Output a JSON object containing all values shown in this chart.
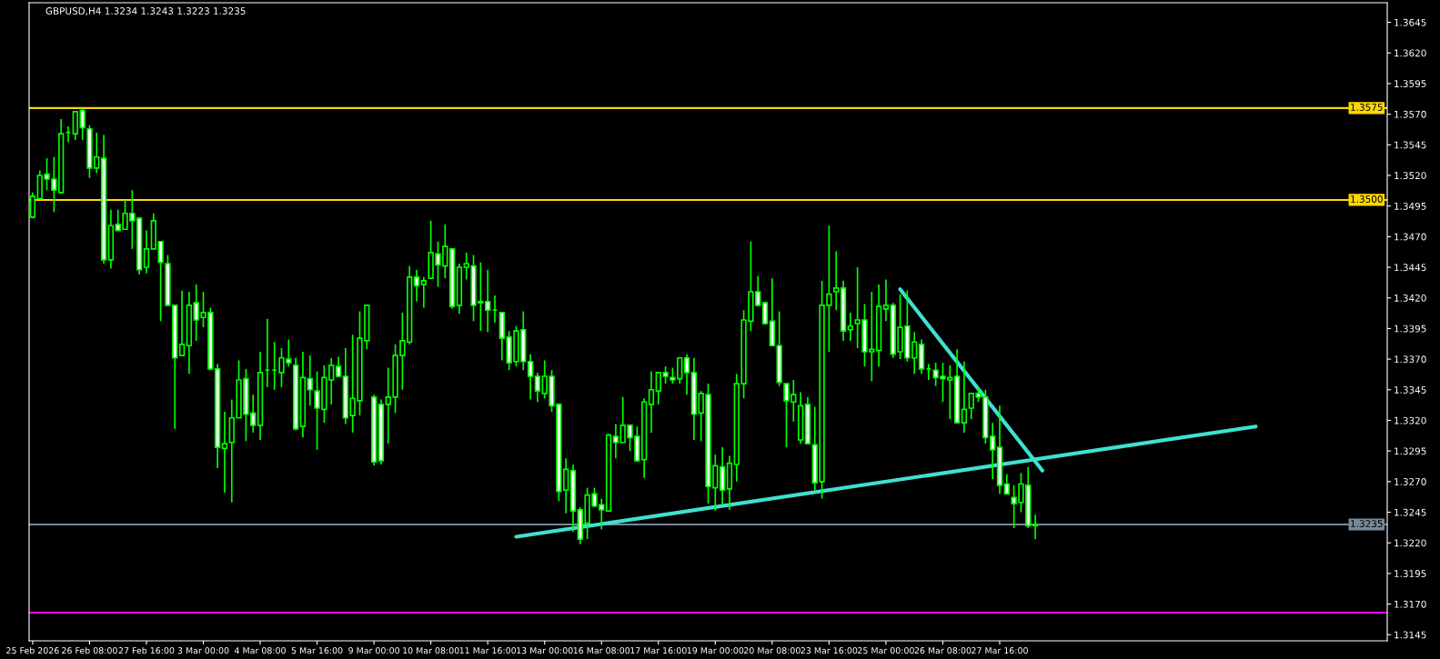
{
  "chart_data": {
    "type": "candlestick",
    "title": "GBPUSD,H4 1.3234 1.3243 1.3223 1.3235",
    "color": "#00ff00",
    "categories": [
      "25 Feb 2026",
      null,
      null,
      null,
      null,
      null,
      null,
      null,
      "26 Feb 08:00",
      null,
      null,
      null,
      null,
      null,
      null,
      null,
      "27 Feb 16:00",
      null,
      null,
      null,
      null,
      null,
      null,
      null,
      "3 Mar 00:00",
      null,
      null,
      null,
      null,
      null,
      null,
      null,
      "4 Mar 08:00",
      null,
      null,
      null,
      null,
      null,
      null,
      null,
      "5 Mar 16:00",
      null,
      null,
      null,
      null,
      null,
      null,
      null,
      "9 Mar 00:00",
      null,
      null,
      null,
      null,
      null,
      null,
      null,
      "10 Mar 08:00",
      null,
      null,
      null,
      null,
      null,
      null,
      null,
      "11 Mar 16:00",
      null,
      null,
      null,
      null,
      null,
      null,
      null,
      "13 Mar 00:00",
      null,
      null,
      null,
      null,
      null,
      null,
      null,
      "16 Mar 08:00",
      null,
      null,
      null,
      null,
      null,
      null,
      null,
      "17 Mar 16:00",
      null,
      null,
      null,
      null,
      null,
      null,
      null,
      "19 Mar 00:00",
      null,
      null,
      null,
      null,
      null,
      null,
      null,
      "20 Mar 08:00",
      null,
      null,
      null,
      null,
      null,
      null,
      null,
      "23 Mar 16:00",
      null,
      null,
      null,
      null,
      null,
      null,
      null,
      "25 Mar 00:00",
      null,
      null,
      null,
      null,
      null,
      null,
      null,
      "26 Mar 08:00",
      null,
      null,
      null,
      null,
      null,
      null,
      null,
      "27 Mar 16:00",
      null,
      null,
      null,
      null,
      null,
      null,
      null,
      null,
      null,
      null,
      null,
      null,
      null,
      null,
      null,
      null,
      null,
      null,
      null,
      null,
      null,
      null,
      null,
      null,
      null,
      null,
      null,
      null,
      null,
      null,
      null,
      null,
      null,
      null,
      null,
      null,
      null,
      null,
      null,
      null,
      null,
      null,
      null,
      null,
      null,
      null,
      null,
      null,
      null,
      null,
      null,
      null,
      null,
      null
    ],
    "ohlc": [
      [
        1.3486,
        1.3506,
        1.3485,
        1.3503
      ],
      [
        1.3501,
        1.3524,
        1.3501,
        1.352
      ],
      [
        1.3521,
        1.3534,
        1.3508,
        1.3517
      ],
      [
        1.3517,
        1.3535,
        1.349,
        1.3508
      ],
      [
        1.3506,
        1.3566,
        1.3505,
        1.3554
      ],
      [
        1.3555,
        1.356,
        1.3547,
        1.3555
      ],
      [
        1.3554,
        1.3572,
        1.3549,
        1.3572
      ],
      [
        1.3573,
        1.3575,
        1.3549,
        1.3559
      ],
      [
        1.3558,
        1.3561,
        1.3518,
        1.3526
      ],
      [
        1.3526,
        1.3555,
        1.3522,
        1.3535
      ],
      [
        1.3534,
        1.3553,
        1.3448,
        1.3451
      ],
      [
        1.3451,
        1.3492,
        1.3444,
        1.3479
      ],
      [
        1.348,
        1.3492,
        1.3475,
        1.3475
      ],
      [
        1.3476,
        1.35,
        1.3476,
        1.3489
      ],
      [
        1.3489,
        1.3508,
        1.346,
        1.3483
      ],
      [
        1.3485,
        1.3486,
        1.3439,
        1.3443
      ],
      [
        1.3445,
        1.3475,
        1.344,
        1.346
      ],
      [
        1.346,
        1.3489,
        1.346,
        1.3483
      ],
      [
        1.3466,
        1.3466,
        1.3401,
        1.3449
      ],
      [
        1.3448,
        1.3455,
        1.3414,
        1.3414
      ],
      [
        1.3414,
        1.3414,
        1.3313,
        1.3371
      ],
      [
        1.3373,
        1.3426,
        1.3373,
        1.3382
      ],
      [
        1.3381,
        1.3425,
        1.3358,
        1.3414
      ],
      [
        1.3416,
        1.3431,
        1.3385,
        1.3402
      ],
      [
        1.3404,
        1.3425,
        1.3396,
        1.3408
      ],
      [
        1.3408,
        1.3412,
        1.3361,
        1.3362
      ],
      [
        1.3362,
        1.3366,
        1.3281,
        1.3298
      ],
      [
        1.3297,
        1.3327,
        1.3261,
        1.3301
      ],
      [
        1.3302,
        1.3337,
        1.3253,
        1.3322
      ],
      [
        1.3322,
        1.3369,
        1.3322,
        1.3353
      ],
      [
        1.3354,
        1.3362,
        1.3303,
        1.3325
      ],
      [
        1.3326,
        1.3341,
        1.331,
        1.3316
      ],
      [
        1.3316,
        1.3376,
        1.3304,
        1.3359
      ],
      [
        1.3361,
        1.3403,
        1.3347,
        1.3361
      ],
      [
        1.3361,
        1.3384,
        1.3345,
        1.3361
      ],
      [
        1.3359,
        1.3379,
        1.3347,
        1.3371
      ],
      [
        1.337,
        1.3386,
        1.3364,
        1.3367
      ],
      [
        1.3365,
        1.3371,
        1.3312,
        1.3313
      ],
      [
        1.3315,
        1.3376,
        1.3306,
        1.3355
      ],
      [
        1.3354,
        1.3373,
        1.3332,
        1.3345
      ],
      [
        1.3344,
        1.336,
        1.3296,
        1.333
      ],
      [
        1.3329,
        1.3365,
        1.3318,
        1.3355
      ],
      [
        1.3353,
        1.3371,
        1.3333,
        1.3365
      ],
      [
        1.3364,
        1.3372,
        1.3355,
        1.3356
      ],
      [
        1.3356,
        1.3379,
        1.3317,
        1.3322
      ],
      [
        1.3324,
        1.339,
        1.331,
        1.3338
      ],
      [
        1.3336,
        1.3409,
        1.3324,
        1.3387
      ],
      [
        1.3385,
        1.3414,
        1.3378,
        1.3414
      ],
      [
        1.3339,
        1.3341,
        1.3283,
        1.3286
      ],
      [
        1.3333,
        1.3337,
        1.3284,
        1.3287
      ],
      [
        1.3333,
        1.3363,
        1.3301,
        1.3339
      ],
      [
        1.3339,
        1.3382,
        1.3326,
        1.3373
      ],
      [
        1.3373,
        1.3408,
        1.3345,
        1.3385
      ],
      [
        1.3384,
        1.3446,
        1.3382,
        1.3437
      ],
      [
        1.3437,
        1.3443,
        1.3417,
        1.343
      ],
      [
        1.3431,
        1.3437,
        1.3412,
        1.3434
      ],
      [
        1.3436,
        1.3483,
        1.3436,
        1.3457
      ],
      [
        1.3456,
        1.3466,
        1.3429,
        1.3447
      ],
      [
        1.3446,
        1.348,
        1.3436,
        1.3462
      ],
      [
        1.346,
        1.346,
        1.3411,
        1.3413
      ],
      [
        1.3414,
        1.3448,
        1.3407,
        1.3445
      ],
      [
        1.3445,
        1.3457,
        1.3435,
        1.3448
      ],
      [
        1.3446,
        1.3455,
        1.3401,
        1.3414
      ],
      [
        1.3416,
        1.3449,
        1.3393,
        1.3417
      ],
      [
        1.3417,
        1.3443,
        1.3392,
        1.341
      ],
      [
        1.341,
        1.3422,
        1.34,
        1.341
      ],
      [
        1.3408,
        1.3408,
        1.3369,
        1.3387
      ],
      [
        1.3388,
        1.3393,
        1.3361,
        1.3367
      ],
      [
        1.3368,
        1.3397,
        1.3364,
        1.3393
      ],
      [
        1.3394,
        1.3409,
        1.3361,
        1.3368
      ],
      [
        1.3368,
        1.3374,
        1.3337,
        1.3356
      ],
      [
        1.3356,
        1.3359,
        1.3335,
        1.3344
      ],
      [
        1.3342,
        1.3369,
        1.3338,
        1.3356
      ],
      [
        1.3356,
        1.3361,
        1.3327,
        1.3332
      ],
      [
        1.3333,
        1.3334,
        1.3254,
        1.3262
      ],
      [
        1.3263,
        1.3289,
        1.3244,
        1.328
      ],
      [
        1.3279,
        1.3284,
        1.3229,
        1.3246
      ],
      [
        1.3247,
        1.3249,
        1.3219,
        1.3223
      ],
      [
        1.3236,
        1.3265,
        1.3223,
        1.3259
      ],
      [
        1.326,
        1.3265,
        1.3249,
        1.325
      ],
      [
        1.3251,
        1.3256,
        1.3231,
        1.3247
      ],
      [
        1.3246,
        1.3309,
        1.3246,
        1.3308
      ],
      [
        1.3307,
        1.3317,
        1.3289,
        1.3302
      ],
      [
        1.3302,
        1.3339,
        1.3302,
        1.3316
      ],
      [
        1.3316,
        1.3316,
        1.3295,
        1.3306
      ],
      [
        1.3307,
        1.3315,
        1.3286,
        1.3287
      ],
      [
        1.3288,
        1.3338,
        1.3273,
        1.3335
      ],
      [
        1.3333,
        1.336,
        1.331,
        1.3345
      ],
      [
        1.3344,
        1.3359,
        1.3333,
        1.3359
      ],
      [
        1.3359,
        1.3364,
        1.335,
        1.3356
      ],
      [
        1.3355,
        1.3363,
        1.335,
        1.3353
      ],
      [
        1.3354,
        1.3371,
        1.335,
        1.3371
      ],
      [
        1.3371,
        1.3374,
        1.3341,
        1.3359
      ],
      [
        1.3359,
        1.3371,
        1.3304,
        1.3325
      ],
      [
        1.3326,
        1.3344,
        1.3303,
        1.3342
      ],
      [
        1.3341,
        1.335,
        1.3252,
        1.3266
      ],
      [
        1.3265,
        1.3292,
        1.3246,
        1.3283
      ],
      [
        1.3282,
        1.3298,
        1.3251,
        1.3263
      ],
      [
        1.3264,
        1.3291,
        1.3247,
        1.3285
      ],
      [
        1.3284,
        1.3358,
        1.327,
        1.335
      ],
      [
        1.335,
        1.341,
        1.3338,
        1.3402
      ],
      [
        1.3401,
        1.3466,
        1.3393,
        1.3425
      ],
      [
        1.3425,
        1.3438,
        1.3413,
        1.3414
      ],
      [
        1.3416,
        1.3417,
        1.3398,
        1.3399
      ],
      [
        1.3401,
        1.3436,
        1.3381,
        1.3381
      ],
      [
        1.3381,
        1.3409,
        1.3348,
        1.3351
      ],
      [
        1.335,
        1.335,
        1.3298,
        1.3336
      ],
      [
        1.3335,
        1.3353,
        1.3319,
        1.3341
      ],
      [
        1.3304,
        1.3343,
        1.3301,
        1.3332
      ],
      [
        1.3333,
        1.3339,
        1.3301,
        1.3301
      ],
      [
        1.33,
        1.3331,
        1.3263,
        1.3269
      ],
      [
        1.327,
        1.3434,
        1.3256,
        1.3414
      ],
      [
        1.3414,
        1.3479,
        1.3376,
        1.3423
      ],
      [
        1.3425,
        1.3458,
        1.341,
        1.3428
      ],
      [
        1.3428,
        1.3434,
        1.3385,
        1.3393
      ],
      [
        1.3394,
        1.3408,
        1.3385,
        1.3397
      ],
      [
        1.3399,
        1.3445,
        1.3379,
        1.3402
      ],
      [
        1.3402,
        1.3415,
        1.3364,
        1.3376
      ],
      [
        1.3376,
        1.3425,
        1.3352,
        1.3378
      ],
      [
        1.3377,
        1.3431,
        1.3364,
        1.3413
      ],
      [
        1.3411,
        1.3435,
        1.3401,
        1.3414
      ],
      [
        1.3414,
        1.3416,
        1.3371,
        1.3374
      ],
      [
        1.3376,
        1.3423,
        1.337,
        1.3396
      ],
      [
        1.3397,
        1.3426,
        1.3368,
        1.3371
      ],
      [
        1.3371,
        1.3392,
        1.3358,
        1.3384
      ],
      [
        1.3382,
        1.3386,
        1.3358,
        1.3362
      ],
      [
        1.3362,
        1.3366,
        1.3353,
        1.3362
      ],
      [
        1.3361,
        1.3367,
        1.3348,
        1.3355
      ],
      [
        1.3356,
        1.3367,
        1.3335,
        1.3354
      ],
      [
        1.3353,
        1.3365,
        1.3321,
        1.3355
      ],
      [
        1.3356,
        1.3378,
        1.3318,
        1.3318
      ],
      [
        1.3318,
        1.3368,
        1.331,
        1.3329
      ],
      [
        1.333,
        1.3342,
        1.3321,
        1.3342
      ],
      [
        1.3342,
        1.3347,
        1.3335,
        1.3339
      ],
      [
        1.3339,
        1.3345,
        1.3301,
        1.3306
      ],
      [
        1.3307,
        1.3318,
        1.3272,
        1.3296
      ],
      [
        1.3298,
        1.3332,
        1.326,
        1.3267
      ],
      [
        1.3268,
        1.3276,
        1.326,
        1.326
      ],
      [
        1.3257,
        1.3267,
        1.3232,
        1.3252
      ],
      [
        1.3253,
        1.3277,
        1.3245,
        1.3268
      ],
      [
        1.3267,
        1.3282,
        1.3232,
        1.3234
      ],
      [
        1.3234,
        1.3243,
        1.3223,
        1.3235
      ],
      null,
      null,
      null,
      null,
      null,
      null,
      null,
      null,
      null,
      null,
      null,
      null,
      null,
      null,
      null,
      null,
      null,
      null,
      null,
      null,
      null,
      null,
      null,
      null,
      null,
      null,
      null,
      null,
      null,
      null,
      null,
      null,
      null,
      null,
      null,
      null,
      null,
      null,
      null,
      null,
      null,
      null,
      null,
      null,
      null,
      null,
      null,
      null,
      null
    ],
    "series": [
      {
        "type": "line",
        "color": "#40e0d0",
        "values": [
          null,
          null,
          null,
          null,
          null,
          null,
          null,
          null,
          null,
          null,
          null,
          null,
          null,
          null,
          null,
          null,
          null,
          null,
          null,
          null,
          null,
          null,
          null,
          null,
          null,
          null,
          null,
          null,
          null,
          null,
          null,
          null,
          null,
          null,
          null,
          null,
          null,
          null,
          null,
          null,
          null,
          null,
          null,
          null,
          null,
          null,
          null,
          null,
          null,
          null,
          null,
          null,
          null,
          null,
          null,
          null,
          null,
          null,
          null,
          null,
          null,
          null,
          null,
          null,
          null,
          null,
          null,
          null,
          1.3225,
          null,
          null,
          null,
          null,
          null,
          null,
          null,
          null,
          null,
          null,
          null,
          null,
          null,
          null,
          null,
          null,
          null,
          null,
          null,
          null,
          null,
          null,
          null,
          null,
          null,
          null,
          null,
          null,
          null,
          null,
          null,
          null,
          null,
          null,
          null,
          null,
          null,
          null,
          null,
          null,
          null,
          null,
          null,
          null,
          null,
          null,
          null,
          null,
          null,
          null,
          null,
          null,
          null,
          null,
          null,
          null,
          null,
          null,
          null,
          null,
          null,
          null,
          null,
          null,
          null,
          null,
          null,
          null,
          null,
          null,
          null,
          null,
          null,
          null,
          null,
          null,
          null,
          null,
          null,
          null,
          null,
          null,
          null,
          null,
          null,
          null,
          null,
          null,
          null,
          null,
          null,
          null,
          null,
          null,
          null,
          null,
          null,
          null,
          null,
          null,
          null,
          null,
          null,
          1.3315,
          null,
          null,
          null,
          null,
          null,
          null,
          null,
          null,
          null,
          null,
          null,
          null,
          null,
          null,
          null,
          null,
          null,
          null
        ]
      },
      {
        "type": "line",
        "color": "#40e0d0",
        "values": [
          null,
          null,
          null,
          null,
          null,
          null,
          null,
          null,
          null,
          null,
          null,
          null,
          null,
          null,
          null,
          null,
          null,
          null,
          null,
          null,
          null,
          null,
          null,
          null,
          null,
          null,
          null,
          null,
          null,
          null,
          null,
          null,
          null,
          null,
          null,
          null,
          null,
          null,
          null,
          null,
          null,
          null,
          null,
          null,
          null,
          null,
          null,
          null,
          null,
          null,
          null,
          null,
          null,
          null,
          null,
          null,
          null,
          null,
          null,
          null,
          null,
          null,
          null,
          null,
          null,
          null,
          null,
          null,
          null,
          null,
          null,
          null,
          null,
          null,
          null,
          null,
          null,
          null,
          null,
          null,
          null,
          null,
          null,
          null,
          null,
          null,
          null,
          null,
          null,
          null,
          null,
          null,
          null,
          null,
          null,
          null,
          null,
          null,
          null,
          null,
          null,
          null,
          null,
          null,
          null,
          null,
          null,
          null,
          null,
          null,
          null,
          null,
          null,
          null,
          null,
          null,
          null,
          null,
          null,
          null,
          null,
          null,
          1.3427,
          null,
          null,
          null,
          null,
          null,
          null,
          null,
          null,
          null,
          null,
          null,
          null,
          null,
          null,
          null,
          null,
          null,
          null,
          null,
          1.3279,
          null,
          null,
          null,
          null,
          null,
          null,
          null,
          null,
          null,
          null,
          null,
          null,
          null,
          null,
          null,
          null,
          null,
          null,
          null,
          null,
          null,
          null,
          null,
          null,
          null,
          null,
          null,
          null,
          null,
          null,
          null,
          null,
          null,
          null,
          null,
          null,
          null,
          null,
          null,
          null,
          null,
          null,
          null,
          null,
          null,
          null,
          null,
          null
        ]
      }
    ],
    "ref_lines": [
      {
        "axis": "y",
        "value": 1.3575,
        "label": "1.3575",
        "color": "#ffd700"
      },
      {
        "axis": "y",
        "value": 1.35,
        "label": "1.3500",
        "color": "#ffd700"
      },
      {
        "axis": "y",
        "value": 1.3235,
        "label": "1.3235",
        "color": "#778899"
      },
      {
        "axis": "y",
        "value": 1.3163,
        "color": "#ff00ff"
      }
    ],
    "ylim": [
      1.314,
      1.3661
    ],
    "yticks": [
      1.3145,
      {
        "value": 1.317,
        "label": "1.3170"
      },
      1.3195,
      {
        "value": 1.322,
        "label": "1.3220"
      },
      1.3245,
      {
        "value": 1.327,
        "label": "1.3270"
      },
      1.3295,
      {
        "value": 1.332,
        "label": "1.3320"
      },
      1.3345,
      {
        "value": 1.337,
        "label": "1.3370"
      },
      1.3395,
      {
        "value": 1.342,
        "label": "1.3420"
      },
      1.3445,
      {
        "value": 1.347,
        "label": "1.3470"
      },
      1.3495,
      {
        "value": 1.352,
        "label": "1.3520"
      },
      1.3545,
      {
        "value": 1.357,
        "label": "1.3570"
      },
      1.3595,
      {
        "value": 1.362,
        "label": "1.3620"
      },
      1.3645
    ]
  }
}
